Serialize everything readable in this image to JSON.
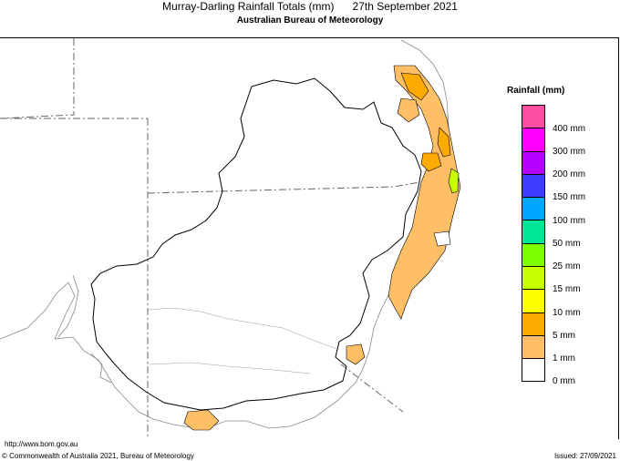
{
  "header": {
    "title": "Murray-Darling Rainfall Totals (mm)      27th September 2021",
    "subtitle": "Australian Bureau of Meteorology"
  },
  "legend": {
    "title": "Rainfall (mm)",
    "items": [
      {
        "label": "",
        "color": "#ff4fa3"
      },
      {
        "label": "400 mm",
        "color": "#ff00ff"
      },
      {
        "label": "300 mm",
        "color": "#b300ff"
      },
      {
        "label": "200 mm",
        "color": "#3c3cff"
      },
      {
        "label": "150 mm",
        "color": "#00a5ff"
      },
      {
        "label": "100 mm",
        "color": "#00e699"
      },
      {
        "label": "50 mm",
        "color": "#7dff00"
      },
      {
        "label": "25 mm",
        "color": "#c8ff00"
      },
      {
        "label": "15 mm",
        "color": "#ffff00"
      },
      {
        "label": "10 mm",
        "color": "#ffaa00"
      },
      {
        "label": "5 mm",
        "color": "#ffbf66"
      },
      {
        "label": "1 mm",
        "color": "#ffffff"
      },
      {
        "label": "0 mm",
        "color": ""
      }
    ]
  },
  "footer": {
    "url": "http://www.bom.gov.au",
    "copyright": "© Commonwealth of Australia 2021, Bureau of Meteorology",
    "issued": "Issued: 27/09/2021"
  }
}
